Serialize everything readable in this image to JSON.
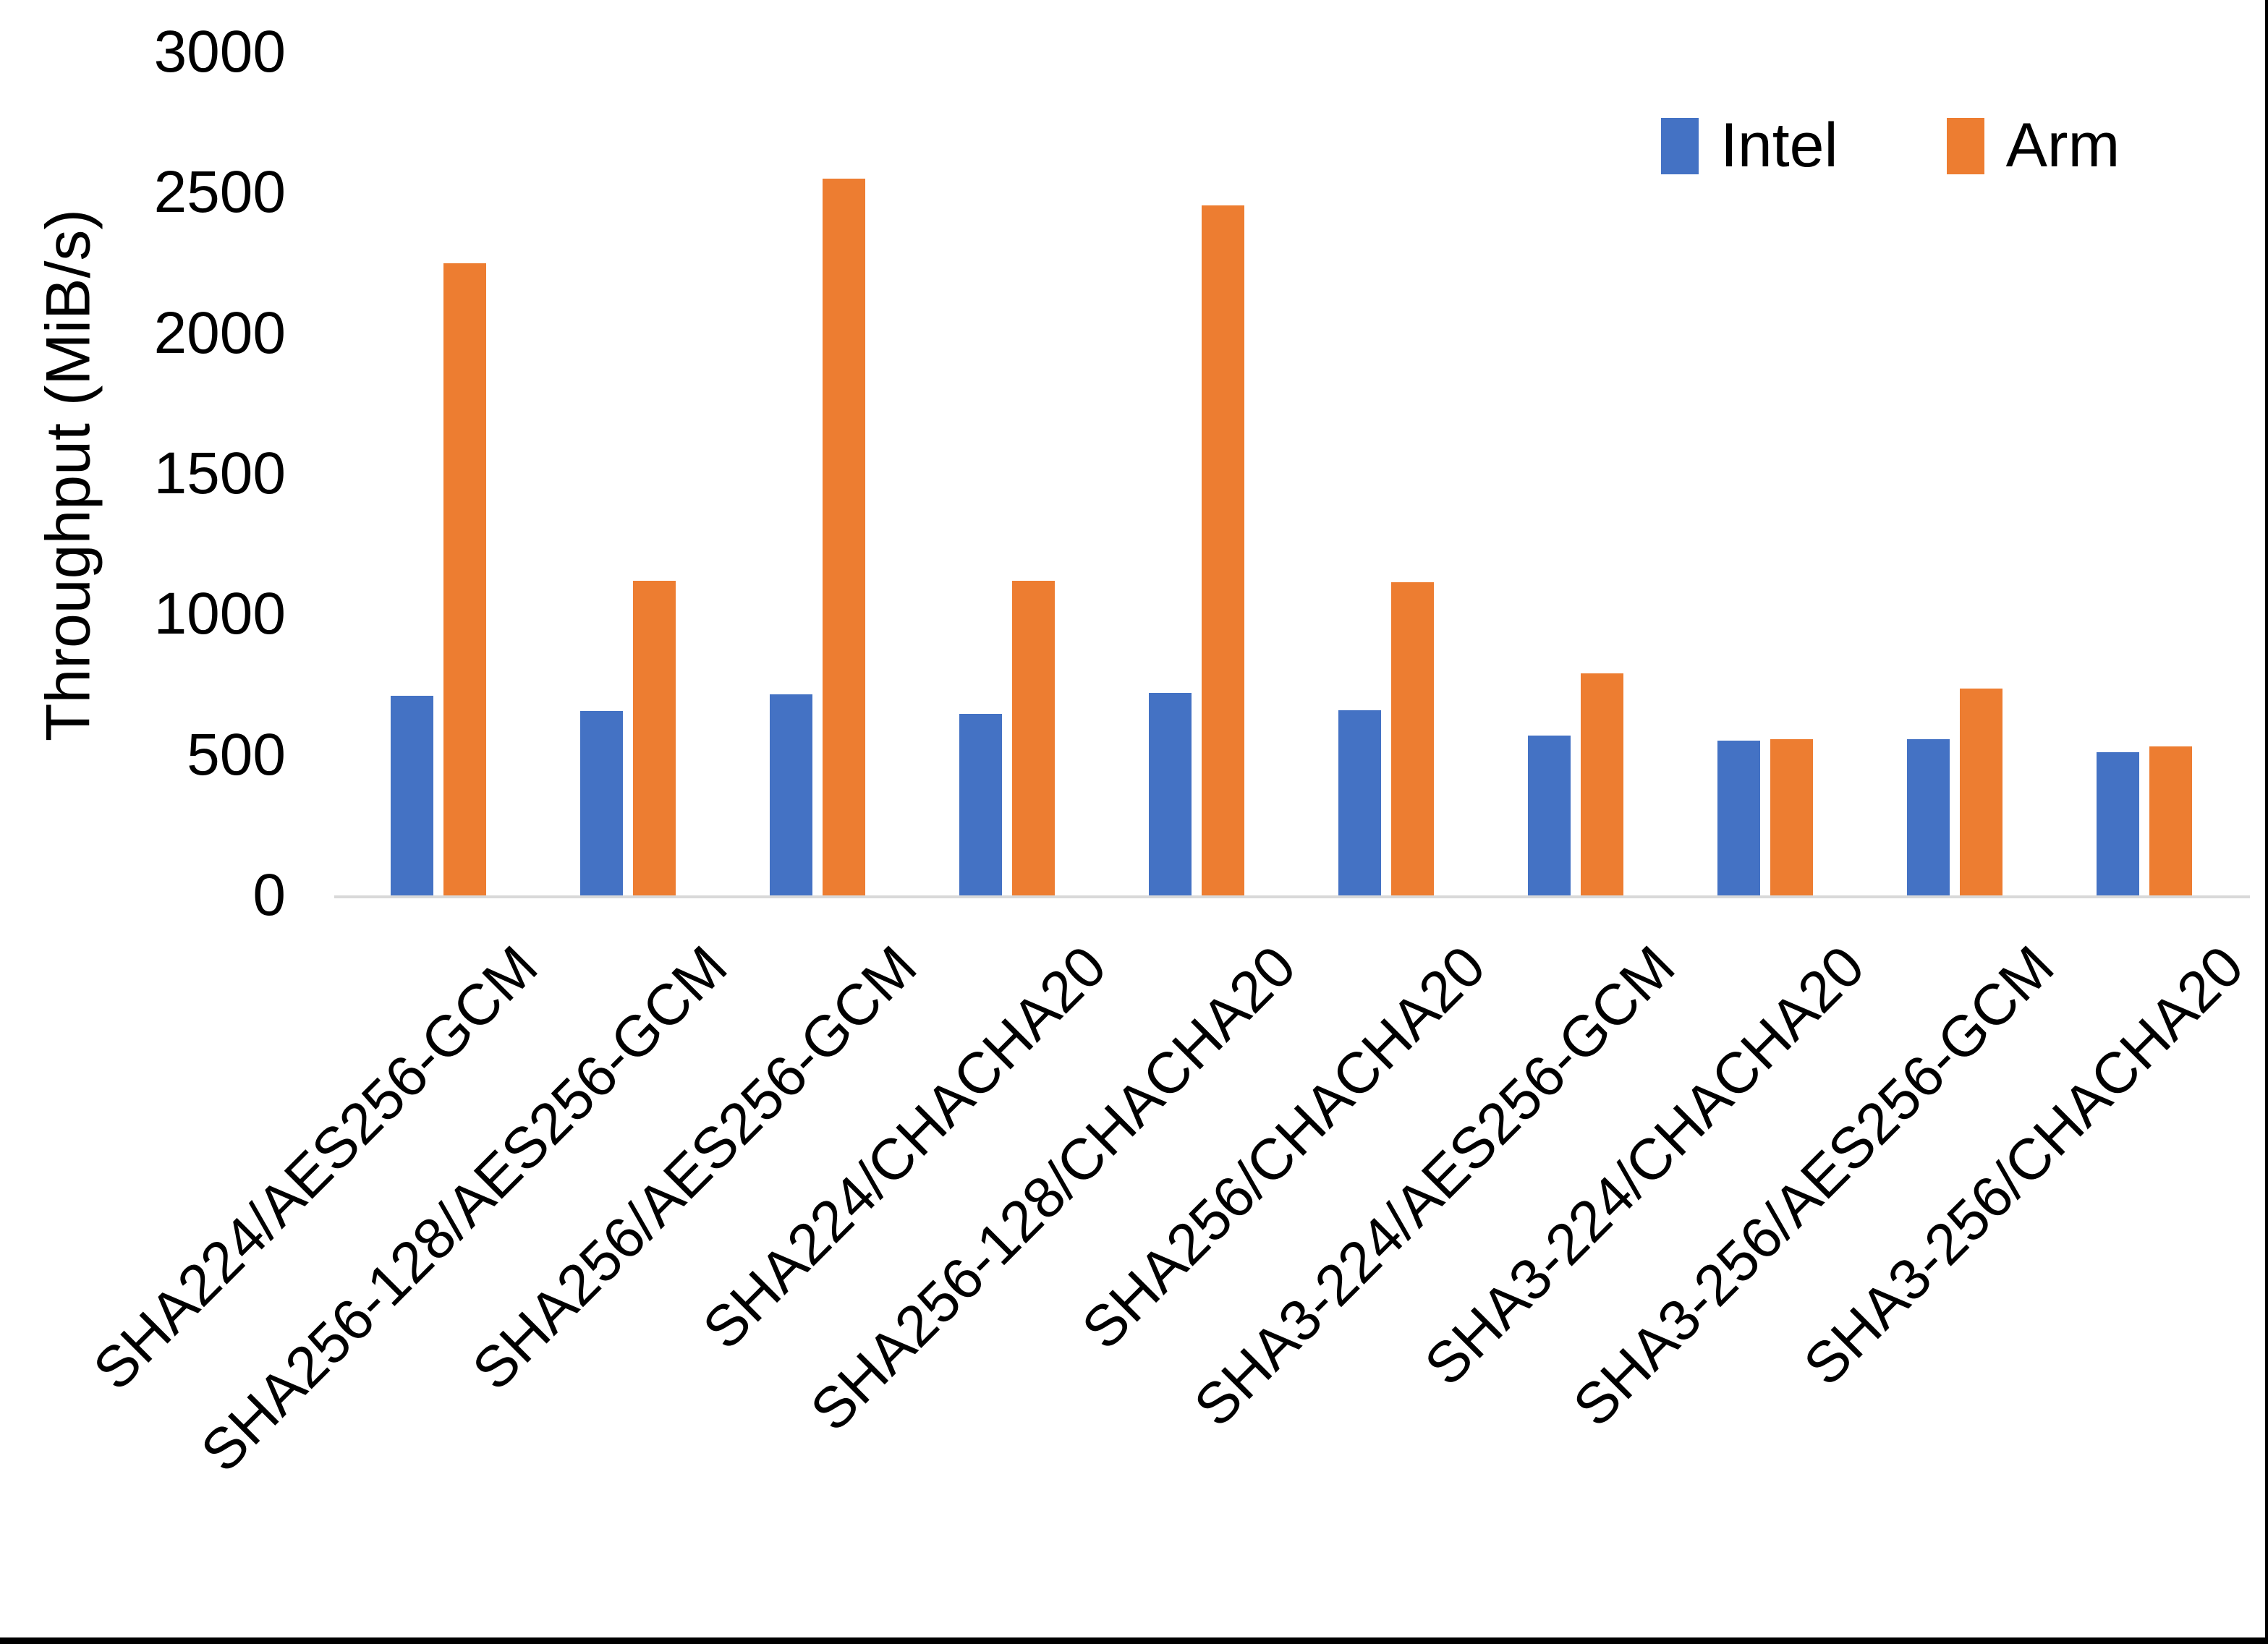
{
  "figure": {
    "background": "#ffffff",
    "frame_border_color": "#000000"
  },
  "chart_data": {
    "type": "bar",
    "title": "",
    "xlabel": "",
    "ylabel": "Throughput (MiB/s)",
    "ylim": [
      0,
      3000
    ],
    "yticks": [
      0,
      500,
      1000,
      1500,
      2000,
      2500,
      3000
    ],
    "grid": false,
    "legend_position": "top-right",
    "axis_line_color": "#d9d9d9",
    "categories": [
      "SHA224/AES256-GCM",
      "SHA256-128/AES256-GCM",
      "SHA256/AES256-GCM",
      "SHA224/CHACHA20",
      "SHA256-128/CHACHA20",
      "SHA256/CHACHA20",
      "SHA3-224/AES256-GCM",
      "SHA3-224/CHACHA20",
      "SHA3-256/AES256-GCM",
      "SHA3-256/CHACHA20"
    ],
    "series": [
      {
        "name": "Intel",
        "color": "#4472C4",
        "values": [
          715,
          660,
          720,
          650,
          725,
          665,
          575,
          555,
          560,
          515
        ]
      },
      {
        "name": "Arm",
        "color": "#ED7D31",
        "values": [
          2255,
          1125,
          2555,
          1125,
          2460,
          1120,
          795,
          560,
          740,
          535
        ]
      }
    ]
  }
}
